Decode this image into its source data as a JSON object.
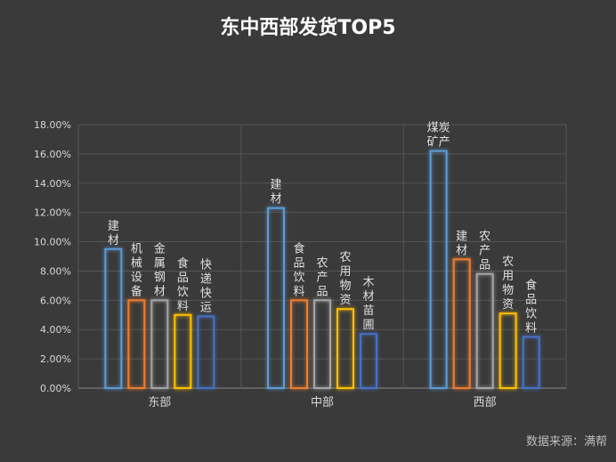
{
  "chart_data": {
    "type": "bar",
    "title": "东中西部发货TOP5",
    "source": "数据来源：满帮",
    "y_ticks": [
      "0.00%",
      "2.00%",
      "4.00%",
      "6.00%",
      "8.00%",
      "10.00%",
      "12.00%",
      "14.00%",
      "16.00%",
      "18.00%"
    ],
    "ylim": [
      0,
      18
    ],
    "y_unit": "%",
    "grid": true,
    "groups": [
      {
        "name": "东部",
        "bars": [
          {
            "label": "建材",
            "value": 9.5,
            "color": "#5b9bd5"
          },
          {
            "label": "机械设备",
            "value": 6.0,
            "color": "#ed7d31"
          },
          {
            "label": "金属钢材",
            "value": 6.0,
            "color": "#a5a5a5"
          },
          {
            "label": "食品饮料",
            "value": 5.0,
            "color": "#ffc000"
          },
          {
            "label": "快递快运",
            "value": 4.9,
            "color": "#4472c4"
          }
        ]
      },
      {
        "name": "中部",
        "bars": [
          {
            "label": "建材",
            "value": 12.3,
            "color": "#5b9bd5"
          },
          {
            "label": "食品饮料",
            "value": 6.0,
            "color": "#ed7d31"
          },
          {
            "label": "农产品",
            "value": 6.0,
            "color": "#a5a5a5"
          },
          {
            "label": "农用物资",
            "value": 5.4,
            "color": "#ffc000"
          },
          {
            "label": "木材苗圃",
            "value": 3.7,
            "color": "#4472c4"
          }
        ]
      },
      {
        "name": "西部",
        "bars": [
          {
            "label": "煤炭矿产",
            "value": 16.2,
            "color": "#5b9bd5"
          },
          {
            "label": "建材",
            "value": 8.8,
            "color": "#ed7d31"
          },
          {
            "label": "农产品",
            "value": 7.8,
            "color": "#a5a5a5"
          },
          {
            "label": "农用物资",
            "value": 5.1,
            "color": "#ffc000"
          },
          {
            "label": "食品饮料",
            "value": 3.5,
            "color": "#4472c4"
          }
        ]
      }
    ]
  }
}
